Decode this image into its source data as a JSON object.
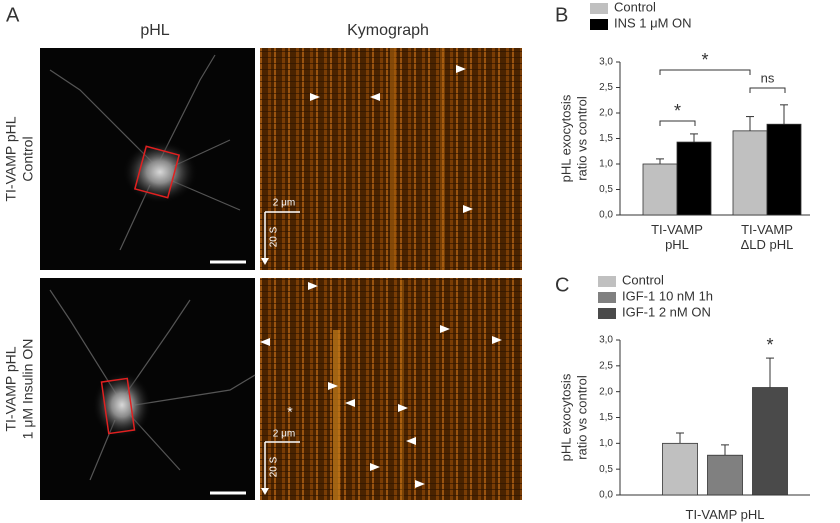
{
  "panel_a": {
    "letter": "A",
    "column_titles": [
      "pHL",
      "Kymograph"
    ],
    "rows": [
      {
        "label_lines": [
          "TI-VAMP pHL",
          "Control"
        ],
        "scale_space": "2 μm",
        "scale_time": "20 S"
      },
      {
        "label_lines": [
          "TI-VAMP pHL",
          "1 μM Insulin ON"
        ],
        "scale_space": "2 μm",
        "scale_time": "20 S",
        "marker": "*"
      }
    ]
  },
  "chart_data": [
    {
      "type": "bar",
      "letter": "B",
      "ylabel": [
        "pHL exocytosis",
        "ratio vs control"
      ],
      "categories": [
        "TI-VAMP pHL",
        "TI-VAMP ΔLD pHL"
      ],
      "series": [
        {
          "name": "Control",
          "color": "#c0c0c0",
          "values": [
            1.0,
            1.65
          ],
          "errors": [
            0.1,
            0.28
          ]
        },
        {
          "name": "INS 1 μM ON",
          "color": "#000000",
          "values": [
            1.43,
            1.78
          ],
          "errors": [
            0.16,
            0.38
          ]
        }
      ],
      "ylim": [
        0,
        3
      ],
      "yticks": [
        {
          "value": 0,
          "label": "0,0"
        },
        {
          "value": 0.5,
          "label": "0,5"
        },
        {
          "value": 1,
          "label": "1,0"
        },
        {
          "value": 1.5,
          "label": "1,5"
        },
        {
          "value": 2,
          "label": "2,0"
        },
        {
          "value": 2.5,
          "label": "2,5"
        },
        {
          "value": 3,
          "label": "3,0"
        }
      ],
      "annotations": [
        "*",
        "*",
        "ns"
      ]
    },
    {
      "type": "bar",
      "letter": "C",
      "ylabel": [
        "pHL exocytosis",
        "ratio vs control"
      ],
      "categories": [
        "TI-VAMP pHL"
      ],
      "series": [
        {
          "name": "Control",
          "color": "#c0c0c0",
          "values": [
            1.0
          ],
          "errors": [
            0.2
          ]
        },
        {
          "name": "IGF-1 10 nM 1h",
          "color": "#808080",
          "values": [
            0.77
          ],
          "errors": [
            0.2
          ]
        },
        {
          "name": "IGF-1 2 nM ON",
          "color": "#4a4a4a",
          "values": [
            2.08
          ],
          "errors": [
            0.57
          ]
        }
      ],
      "ylim": [
        0,
        3
      ],
      "yticks": [
        {
          "value": 0,
          "label": "0,0"
        },
        {
          "value": 0.5,
          "label": "0,5"
        },
        {
          "value": 1,
          "label": "1,0"
        },
        {
          "value": 1.5,
          "label": "1,5"
        },
        {
          "value": 2,
          "label": "2,0"
        },
        {
          "value": 2.5,
          "label": "2,5"
        },
        {
          "value": 3,
          "label": "3,0"
        }
      ],
      "annotations": [
        "*"
      ]
    }
  ]
}
